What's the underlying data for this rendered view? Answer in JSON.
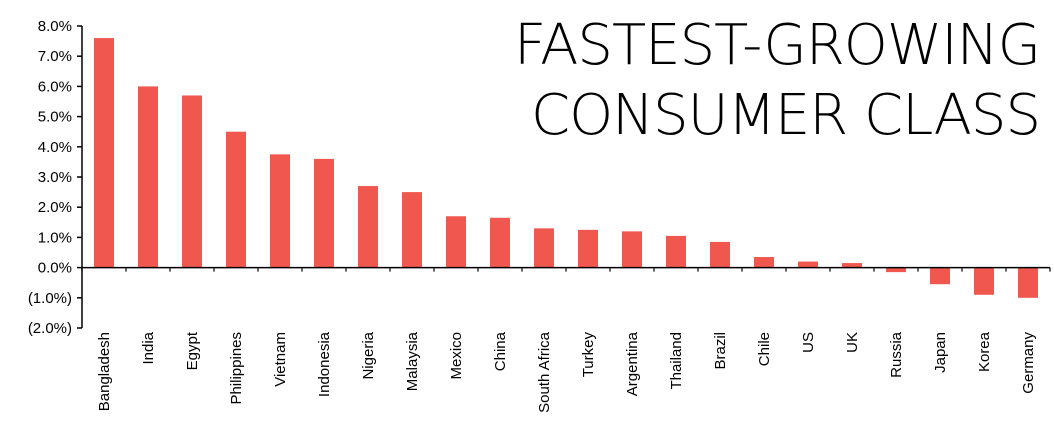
{
  "chart_data": {
    "type": "bar",
    "title_lines": [
      "FASTEST-GROWING",
      "CONSUMER CLASS"
    ],
    "categories": [
      "Bangladesh",
      "India",
      "Egypt",
      "Philippines",
      "Vietnam",
      "Indonesia",
      "Nigeria",
      "Malaysia",
      "Mexico",
      "China",
      "South Africa",
      "Turkey",
      "Argentina",
      "Thailand",
      "Brazil",
      "Chile",
      "US",
      "UK",
      "Russia",
      "Japan",
      "Korea",
      "Germany"
    ],
    "values": [
      7.6,
      6.0,
      5.7,
      4.5,
      3.75,
      3.6,
      2.7,
      2.5,
      1.7,
      1.65,
      1.3,
      1.25,
      1.2,
      1.05,
      0.85,
      0.35,
      0.2,
      0.15,
      -0.15,
      -0.55,
      -0.9,
      -1.0
    ],
    "ylim": [
      -2.0,
      8.0
    ],
    "yticks": [
      "8.0%",
      "7.0%",
      "6.0%",
      "5.0%",
      "4.0%",
      "3.0%",
      "2.0%",
      "1.0%",
      "0.0%",
      "(1.0%)",
      "(2.0%)"
    ],
    "ytick_values": [
      8,
      7,
      6,
      5,
      4,
      3,
      2,
      1,
      0,
      -1,
      -2
    ],
    "grid": false,
    "legend": "none",
    "bar_color": "#f0574e"
  }
}
